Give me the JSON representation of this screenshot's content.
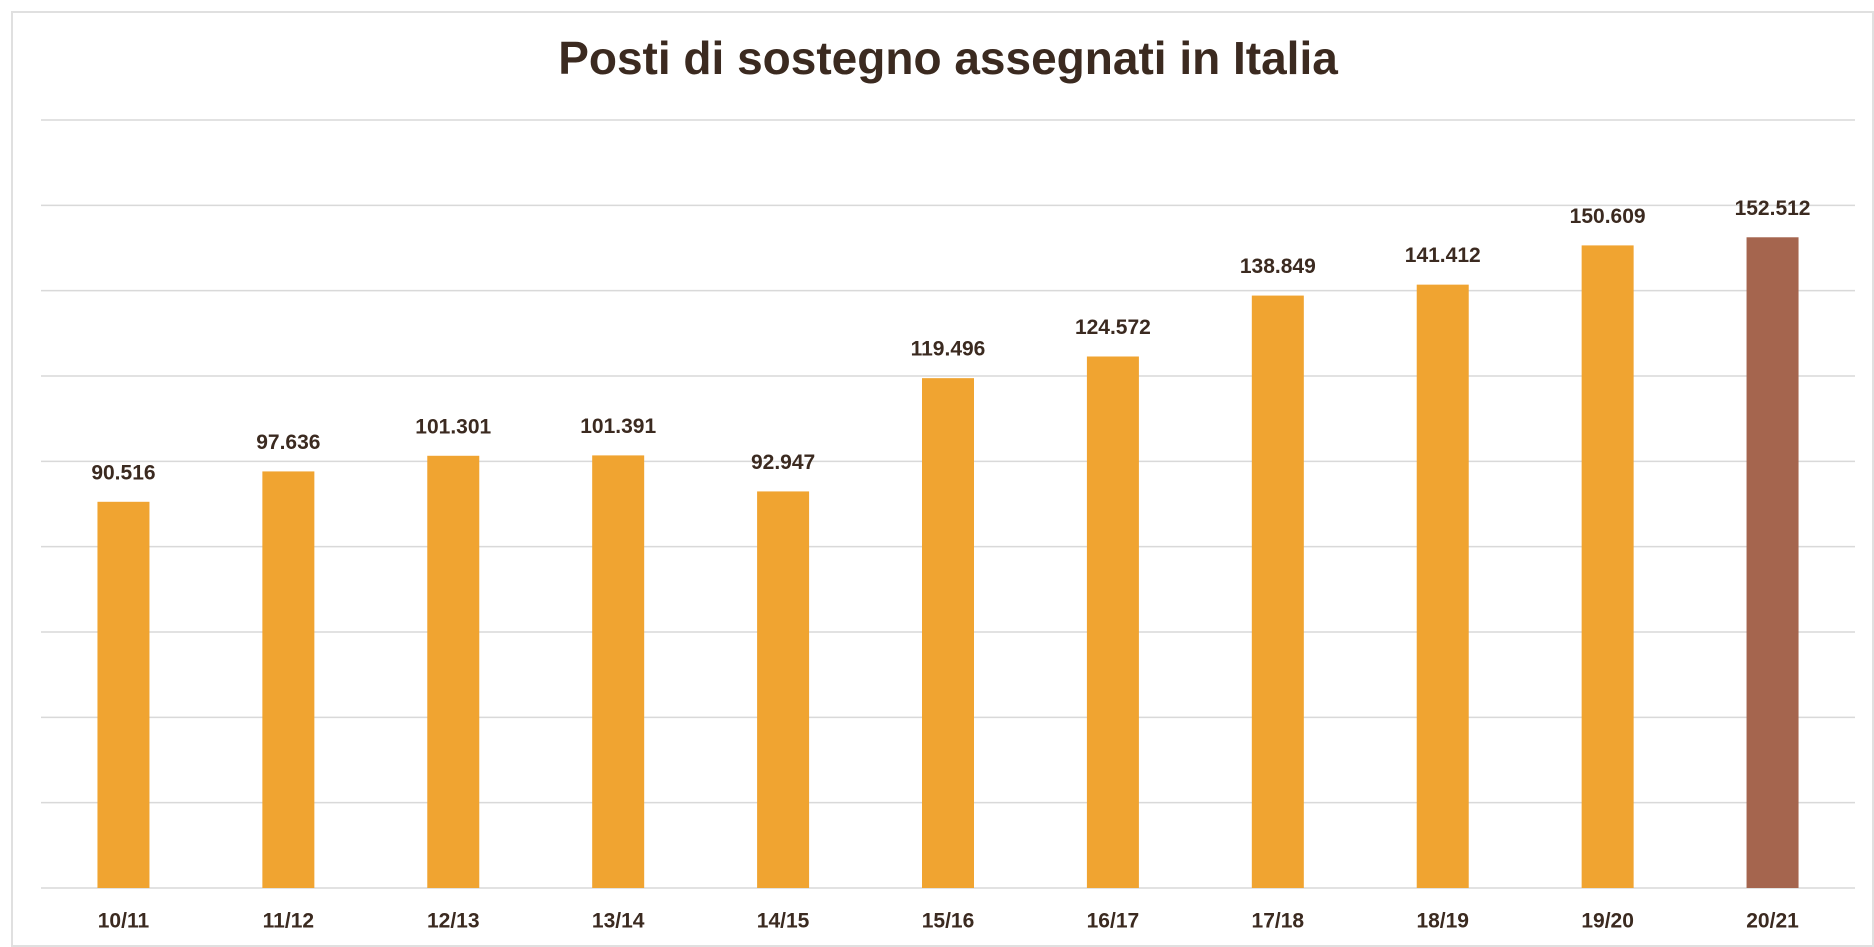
{
  "chart_data": {
    "type": "bar",
    "title": "Posti di sostegno assegnati in Italia",
    "categories": [
      "10/11",
      "11/12",
      "12/13",
      "13/14",
      "14/15",
      "15/16",
      "16/17",
      "17/18",
      "18/19",
      "19/20",
      "20/21"
    ],
    "values": [
      90516,
      97636,
      101301,
      101391,
      92947,
      119496,
      124572,
      138849,
      141412,
      150609,
      152512
    ],
    "value_labels": [
      "90.516",
      "97.636",
      "101.301",
      "101.391",
      "92.947",
      "119.496",
      "124.572",
      "138.849",
      "141.412",
      "150.609",
      "152.512"
    ],
    "colors": [
      "#f0a431",
      "#f0a431",
      "#f0a431",
      "#f0a431",
      "#f0a431",
      "#f0a431",
      "#f0a431",
      "#f0a431",
      "#f0a431",
      "#f0a431",
      "#a5654e"
    ],
    "ylim": [
      0,
      180000
    ],
    "yticks": [
      0,
      20000,
      40000,
      60000,
      80000,
      100000,
      120000,
      140000,
      160000,
      180000
    ],
    "grid": true
  }
}
